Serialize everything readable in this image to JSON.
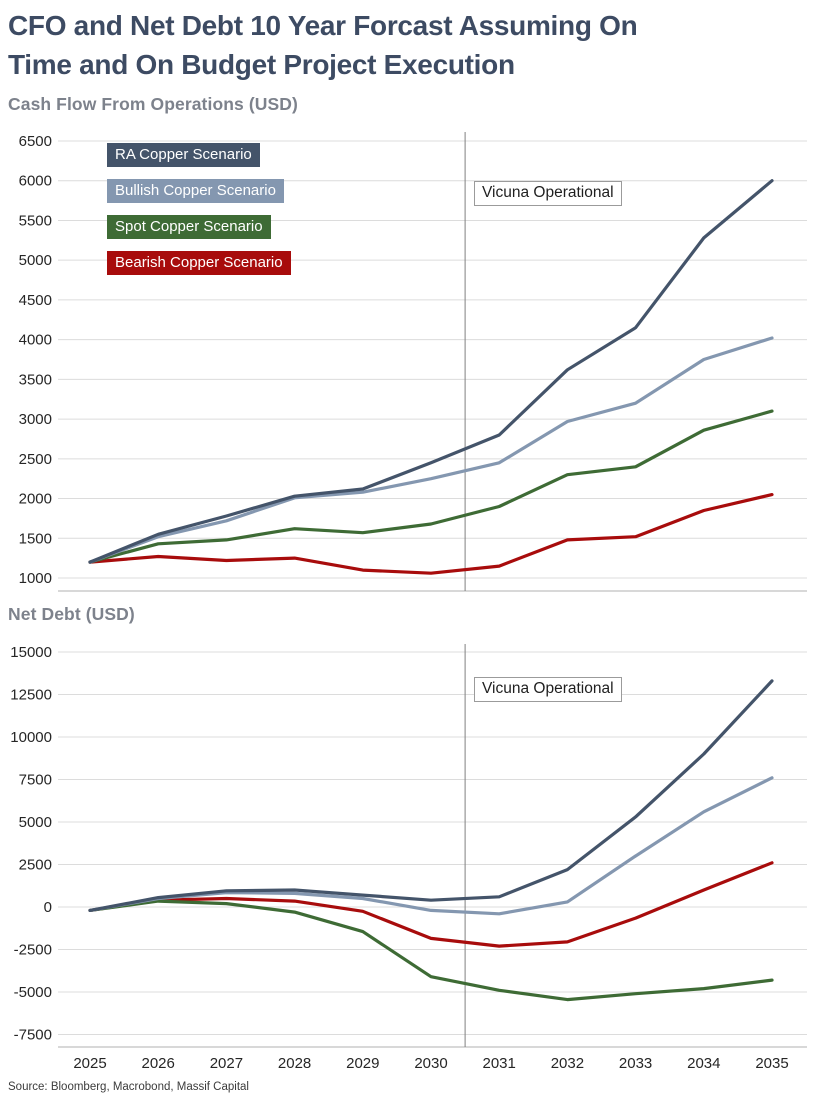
{
  "page": {
    "title_line1": "CFO and Net Debt 10 Year Forcast Assuming On",
    "title_line2": "Time and On Budget Project Execution",
    "source": "Source: Bloomberg, Macrobond, Massif Capital"
  },
  "colors": {
    "title": "#3d4b63",
    "section_title": "#7d828c",
    "gridline": "#dcdcdc",
    "axis_line": "#c0c0c0",
    "annotation_line": "#808080",
    "tick_label": "#262626"
  },
  "chart_data": [
    {
      "type": "line",
      "title": "Cash Flow From Operations (USD)",
      "x": [
        2025,
        2026,
        2027,
        2028,
        2029,
        2030,
        2031,
        2032,
        2033,
        2034,
        2035
      ],
      "show_x_labels": false,
      "ylim": [
        1000,
        6500
      ],
      "y_step": 500,
      "yticks": [
        6500,
        6000,
        5500,
        5000,
        4500,
        4000,
        3500,
        3000,
        2500,
        2000,
        1500,
        1000
      ],
      "grid": true,
      "legend_position": "top-left-inside",
      "annotation": {
        "label": "Vicuna Operational",
        "x": 2030.5
      },
      "series": [
        {
          "name": "RA Copper Scenario",
          "color": "#44546A",
          "values": [
            1200,
            1550,
            1780,
            2030,
            2120,
            2450,
            2800,
            3620,
            4150,
            5280,
            6000
          ]
        },
        {
          "name": "Bullish Copper Scenario",
          "color": "#8497B0",
          "values": [
            1200,
            1520,
            1720,
            2010,
            2080,
            2250,
            2450,
            2970,
            3200,
            3750,
            4020
          ]
        },
        {
          "name": "Spot Copper Scenario",
          "color": "#3E6B35",
          "values": [
            1200,
            1430,
            1480,
            1620,
            1570,
            1680,
            1900,
            2300,
            2400,
            2860,
            3100
          ]
        },
        {
          "name": "Bearish Copper Scenario",
          "color": "#A80C0C",
          "values": [
            1200,
            1270,
            1220,
            1250,
            1100,
            1060,
            1150,
            1480,
            1520,
            1850,
            2050
          ]
        }
      ]
    },
    {
      "type": "line",
      "title": "Net Debt (USD)",
      "x": [
        2025,
        2026,
        2027,
        2028,
        2029,
        2030,
        2031,
        2032,
        2033,
        2034,
        2035
      ],
      "show_x_labels": true,
      "ylim": [
        -7500,
        15000
      ],
      "y_step": 2500,
      "yticks": [
        15000,
        12500,
        10000,
        7500,
        5000,
        2500,
        0,
        -2500,
        -5000,
        -7500
      ],
      "grid": true,
      "legend_position": "none",
      "annotation": {
        "label": "Vicuna Operational",
        "x": 2030.5
      },
      "series": [
        {
          "name": "RA Copper Scenario",
          "color": "#44546A",
          "values": [
            -200,
            550,
            950,
            1000,
            700,
            400,
            600,
            2200,
            5300,
            9000,
            13300
          ]
        },
        {
          "name": "Bullish Copper Scenario",
          "color": "#8497B0",
          "values": [
            -200,
            500,
            850,
            800,
            500,
            -200,
            -400,
            300,
            3000,
            5600,
            7600
          ]
        },
        {
          "name": "Spot Copper Scenario",
          "color": "#3E6B35",
          "values": [
            -200,
            350,
            200,
            -300,
            -1450,
            -4100,
            -4900,
            -5450,
            -5100,
            -4800,
            -4300
          ]
        },
        {
          "name": "Bearish Copper Scenario",
          "color": "#A80C0C",
          "values": [
            -200,
            400,
            500,
            350,
            -250,
            -1850,
            -2300,
            -2050,
            -650,
            1000,
            2600
          ]
        }
      ]
    }
  ]
}
